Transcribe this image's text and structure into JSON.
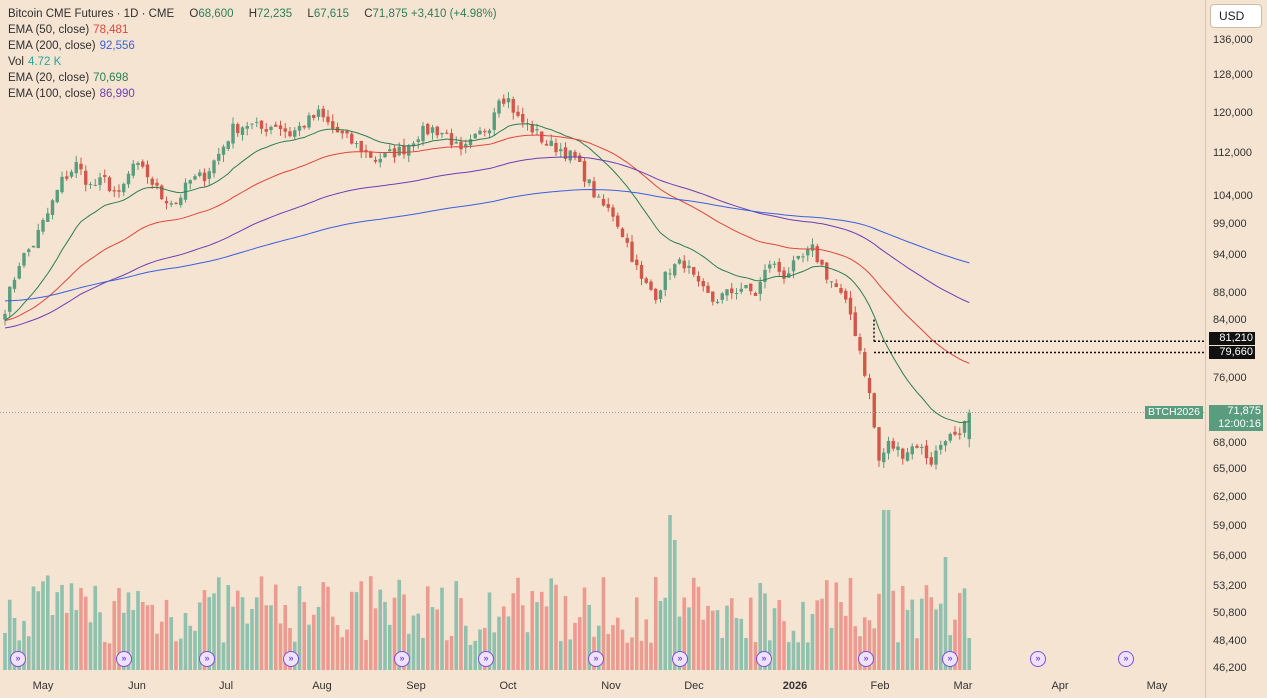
{
  "header": {
    "title": "Bitcoin CME Futures · 1D · CME",
    "open_label": "O",
    "open": "68,600",
    "high_label": "H",
    "high": "72,235",
    "low_label": "L",
    "low": "67,615",
    "close_label": "C",
    "close": "71,875",
    "change": "+3,410 (+4.98%)"
  },
  "indicators": [
    {
      "label": "EMA (50, close)",
      "value": "78,481",
      "color": "#e0463c"
    },
    {
      "label": "EMA (200, close)",
      "value": "92,556",
      "color": "#3a5fe0"
    },
    {
      "label": "Vol",
      "value": "4.72 K",
      "color": "#26a69a"
    },
    {
      "label": "EMA (20, close)",
      "value": "70,698",
      "color": "#2e7d4f"
    },
    {
      "label": "EMA (100, close)",
      "value": "86,990",
      "color": "#6a3fb5"
    }
  ],
  "currency": "USD",
  "symbol_tag": "BTCH2026",
  "last_price": "71,875",
  "countdown": "12:00:16",
  "levels": [
    "81,210",
    "79,660"
  ],
  "colors": {
    "up": "#5a9c7e",
    "down": "#d0584a",
    "vol_up": "#8fc1ae",
    "vol_down": "#eb9b8f",
    "bg": "#f5e4d2"
  },
  "chart_data": {
    "type": "candlestick",
    "y_ticks": [
      "136,000",
      "128,000",
      "120,000",
      "112,000",
      "104,000",
      "99,000",
      "94,000",
      "88,000",
      "84,000",
      "76,000",
      "68,000",
      "65,000",
      "62,000",
      "59,000",
      "56,000",
      "53,200",
      "50,800",
      "48,400",
      "46,200"
    ],
    "x_ticks": [
      "May",
      "Jun",
      "Jul",
      "Aug",
      "Sep",
      "Oct",
      "Nov",
      "Dec",
      "2026",
      "Feb",
      "Mar",
      "Apr",
      "May"
    ],
    "ylim": [
      46200,
      136000
    ],
    "close_series": [
      [
        0,
        86000
      ],
      [
        3,
        93000
      ],
      [
        6,
        96000
      ],
      [
        9,
        101000
      ],
      [
        12,
        107000
      ],
      [
        15,
        110000
      ],
      [
        18,
        106000
      ],
      [
        21,
        107000
      ],
      [
        24,
        104000
      ],
      [
        27,
        110000
      ],
      [
        30,
        108000
      ],
      [
        33,
        104000
      ],
      [
        36,
        103000
      ],
      [
        39,
        107000
      ],
      [
        42,
        108000
      ],
      [
        45,
        112000
      ],
      [
        48,
        117000
      ],
      [
        51,
        118000
      ],
      [
        54,
        117000
      ],
      [
        57,
        118000
      ],
      [
        60,
        116000
      ],
      [
        63,
        118000
      ],
      [
        66,
        120000
      ],
      [
        69,
        117000
      ],
      [
        72,
        115000
      ],
      [
        75,
        113000
      ],
      [
        78,
        111000
      ],
      [
        81,
        112000
      ],
      [
        84,
        113000
      ],
      [
        87,
        116000
      ],
      [
        90,
        117000
      ],
      [
        93,
        116000
      ],
      [
        96,
        112000
      ],
      [
        99,
        115000
      ],
      [
        102,
        118000
      ],
      [
        104,
        124000
      ],
      [
        106,
        123000
      ],
      [
        108,
        119000
      ],
      [
        111,
        117000
      ],
      [
        114,
        114000
      ],
      [
        117,
        113000
      ],
      [
        120,
        111000
      ],
      [
        122,
        108000
      ],
      [
        125,
        103000
      ],
      [
        128,
        101000
      ],
      [
        131,
        96000
      ],
      [
        134,
        90000
      ],
      [
        137,
        88000
      ],
      [
        140,
        92000
      ],
      [
        143,
        93000
      ],
      [
        146,
        89000
      ],
      [
        149,
        87000
      ],
      [
        152,
        88000
      ],
      [
        155,
        89000
      ],
      [
        158,
        88000
      ],
      [
        161,
        93000
      ],
      [
        164,
        91000
      ],
      [
        167,
        93000
      ],
      [
        170,
        95000
      ],
      [
        173,
        91000
      ],
      [
        175,
        89000
      ],
      [
        178,
        85000
      ],
      [
        180,
        80000
      ],
      [
        182,
        74000
      ],
      [
        184,
        66000
      ],
      [
        186,
        68000
      ],
      [
        189,
        67000
      ],
      [
        192,
        68000
      ],
      [
        195,
        66000
      ],
      [
        198,
        69000
      ],
      [
        201,
        68500
      ],
      [
        203,
        71875
      ]
    ]
  }
}
